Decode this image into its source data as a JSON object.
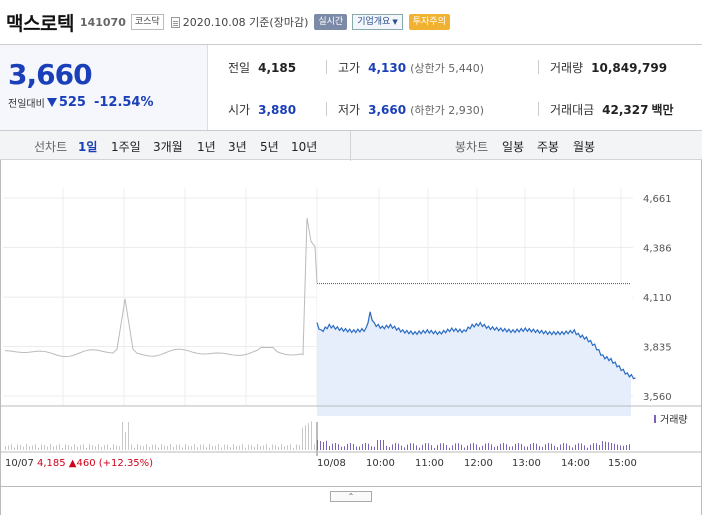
{
  "header": {
    "name": "맥스로텍",
    "code": "141070",
    "market": "코스닥",
    "date": "2020.10.08 기준(장마감)",
    "realtime": "실시간",
    "company_info": "기업개요",
    "warning": "투자주의",
    "icons": {
      "doc": "document-icon",
      "caret": "caret-down-icon"
    }
  },
  "quote": {
    "price": "3,660",
    "change_label": "전일대비",
    "change": "525",
    "change_pct": "-12.54%",
    "direction": "down",
    "prev_close_label": "전일",
    "prev_close": "4,185",
    "high_label": "고가",
    "high": "4,130",
    "upper_limit": "(상한가 5,440)",
    "volume_label": "거래량",
    "volume": "10,849,799",
    "open_label": "시가",
    "open": "3,880",
    "low_label": "저가",
    "low": "3,660",
    "lower_limit": "(하한가 2,930)",
    "amount_label": "거래대금",
    "amount": "42,327",
    "amount_unit": "백만"
  },
  "periods": {
    "line_label": "선차트",
    "line_items": [
      "1일",
      "1주일",
      "3개월",
      "1년",
      "3년",
      "5년",
      "10년"
    ],
    "active": "1일",
    "candle_label": "봉차트",
    "candle_items": [
      "일봉",
      "주봉",
      "월봉"
    ]
  },
  "colors": {
    "accent": "#1a3fb8",
    "up": "#d0021b",
    "prev_line": "#bbbbbb",
    "fill": "#e6eefb"
  },
  "chart_data": {
    "type": "line",
    "y_ticks": [
      "4,661",
      "4,386",
      "4,110",
      "3,835",
      "3,560"
    ],
    "ylim": [
      3560,
      4661
    ],
    "x_ticks": [
      "10/08",
      "10:00",
      "11:00",
      "12:00",
      "13:00",
      "14:00",
      "15:00"
    ],
    "prev_day_label": "10/07",
    "prev_day_info": "4,185 ▲460 (+12.35%)",
    "volume_label": "거래량",
    "reference_price": 4185,
    "series": [
      {
        "x": [
          "09:00",
          "09:05",
          "09:15",
          "09:30",
          "09:45",
          "10:00",
          "10:05",
          "10:10",
          "10:20",
          "10:30",
          "10:45",
          "11:00",
          "11:15",
          "11:30",
          "11:45",
          "12:00",
          "12:10",
          "12:20",
          "12:30",
          "12:45",
          "13:00",
          "13:15",
          "13:30",
          "13:45",
          "14:00",
          "14:15",
          "14:20",
          "14:30",
          "14:40",
          "14:50",
          "15:00",
          "15:10",
          "15:20",
          "15:30"
        ],
        "values": [
          3960,
          3920,
          3950,
          3930,
          3920,
          3930,
          4020,
          3960,
          3940,
          3950,
          3920,
          3910,
          3920,
          3910,
          3930,
          3920,
          3950,
          3960,
          3940,
          3930,
          3920,
          3930,
          3920,
          3910,
          3910,
          3920,
          3900,
          3880,
          3840,
          3780,
          3760,
          3720,
          3680,
          3660
        ]
      }
    ]
  }
}
